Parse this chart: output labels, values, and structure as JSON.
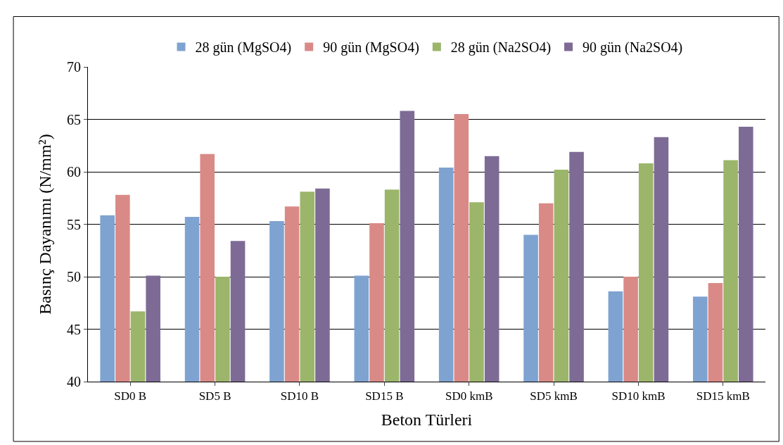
{
  "chart_data": {
    "type": "bar",
    "xlabel": "Beton Türleri",
    "ylabel": "Basınç Dayanımı (N/mm²)",
    "categories": [
      "SD0 B",
      "SD5 B",
      "SD10 B",
      "SD15 B",
      "SD0 kmB",
      "SD5 kmB",
      "SD10 kmB",
      "SD15 kmB"
    ],
    "series": [
      {
        "name": "28 gün (MgSO4)",
        "color": "#7fa3d0",
        "values": [
          55.85,
          55.7,
          55.3,
          50.1,
          60.4,
          54.0,
          48.6,
          48.1
        ]
      },
      {
        "name": "90 gün (MgSO4)",
        "color": "#d98a87",
        "values": [
          57.8,
          61.7,
          56.7,
          55.1,
          65.5,
          57.0,
          50.0,
          49.4
        ]
      },
      {
        "name": "28 gün (Na2SO4)",
        "color": "#9bb56a",
        "values": [
          46.7,
          50.0,
          58.1,
          58.3,
          57.1,
          60.2,
          60.8,
          61.1
        ]
      },
      {
        "name": "90 gün (Na2SO4)",
        "color": "#7d6b95",
        "values": [
          50.1,
          53.4,
          58.4,
          65.8,
          61.5,
          61.9,
          63.3,
          64.3
        ]
      }
    ],
    "ylim": [
      40,
      70
    ],
    "yticks": [
      40,
      45,
      50,
      55,
      60,
      65,
      70
    ],
    "grid": "y",
    "legend": "top"
  }
}
